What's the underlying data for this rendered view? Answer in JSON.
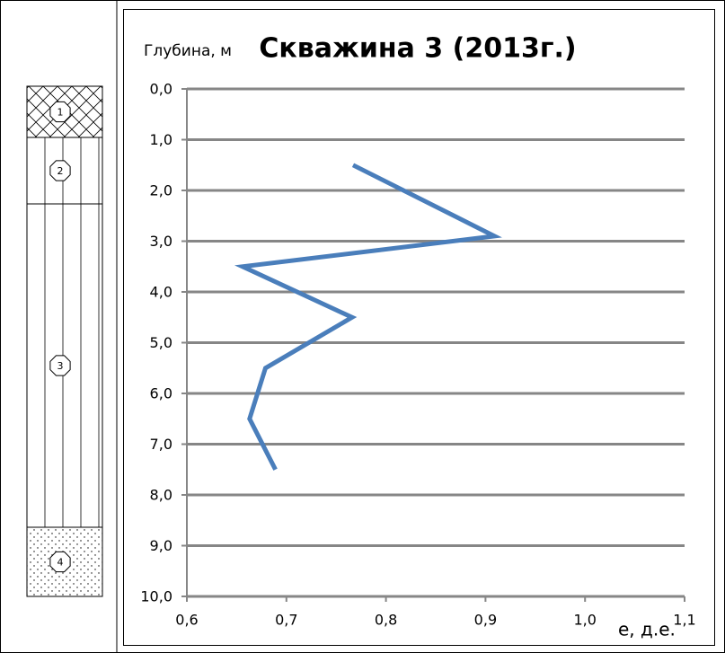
{
  "chart_data": {
    "type": "line",
    "title": "Скважина 3 (2013г.)",
    "y_label": "Глубина, м",
    "x_label": "е, д.е.",
    "x": [
      0.767,
      0.909,
      0.656,
      0.766,
      0.679,
      0.663,
      0.689
    ],
    "y": [
      1.5,
      2.9,
      3.5,
      4.5,
      5.5,
      6.5,
      7.5
    ],
    "color": "#4a7ebb",
    "xlim": [
      0.6,
      1.1
    ],
    "xticks": [
      {
        "value": 0.6,
        "label": "0,6"
      },
      {
        "value": 0.7,
        "label": "0,7"
      },
      {
        "value": 0.8,
        "label": "0,8"
      },
      {
        "value": 0.9,
        "label": "0,9"
      },
      {
        "value": 1.0,
        "label": "1,0"
      },
      {
        "value": 1.1,
        "label": "1,1"
      }
    ],
    "ylim": [
      0,
      10
    ],
    "y_inverted": true,
    "yticks": [
      {
        "value": 0,
        "label": "0,0"
      },
      {
        "value": 1,
        "label": "1,0"
      },
      {
        "value": 2,
        "label": "2,0"
      },
      {
        "value": 3,
        "label": "3,0"
      },
      {
        "value": 4,
        "label": "4,0"
      },
      {
        "value": 5,
        "label": "5,0"
      },
      {
        "value": 6,
        "label": "6,0"
      },
      {
        "value": 7,
        "label": "7,0"
      },
      {
        "value": 8,
        "label": "8,0"
      },
      {
        "value": 9,
        "label": "9,0"
      },
      {
        "value": 10,
        "label": "10,0"
      }
    ],
    "grid": true
  },
  "column": {
    "layers": [
      "1",
      "2",
      "3",
      "4"
    ]
  }
}
